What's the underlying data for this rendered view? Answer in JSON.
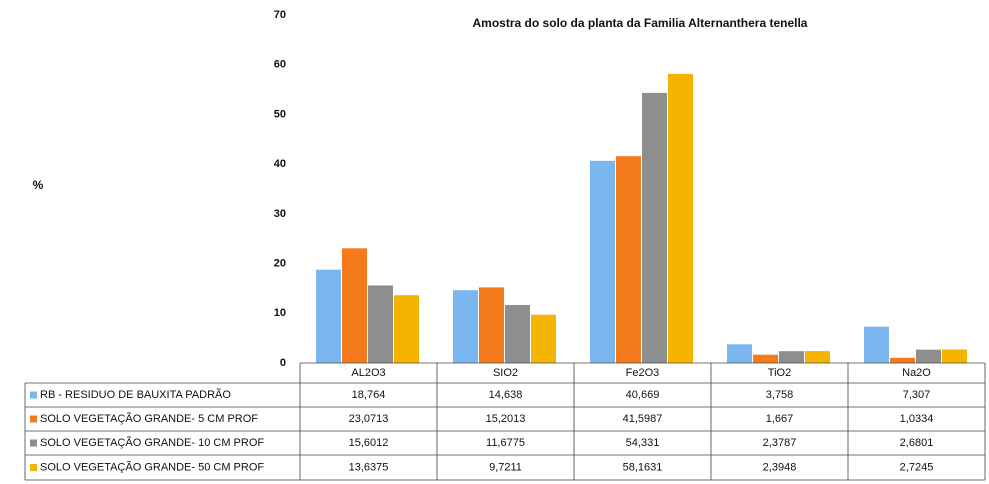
{
  "chart_data": {
    "type": "bar",
    "title": "Amostra do solo da planta da Familia Alternanthera tenella",
    "y_label": "%",
    "categories": [
      "AL2O3",
      "SIO2",
      "Fe2O3",
      "TiO2",
      "Na2O"
    ],
    "ylim": [
      0,
      70
    ],
    "yticks": [
      0,
      10,
      20,
      30,
      40,
      50,
      60,
      70
    ],
    "grid": false,
    "series": [
      {
        "name": "RB - RESIDUO DE BAUXITA PADRÃO",
        "color": "#7ab6f0",
        "values": [
          18.764,
          14.638,
          40.669,
          3.758,
          7.307
        ],
        "value_labels": [
          "18,764",
          "14,638",
          "40,669",
          "3,758",
          "7,307"
        ]
      },
      {
        "name": "SOLO VEGETAÇÃO GRANDE- 5 CM PROF",
        "color": "#f57a1c",
        "values": [
          23.0713,
          15.2013,
          41.5987,
          1.667,
          1.0334
        ],
        "value_labels": [
          "23,0713",
          "15,2013",
          "41,5987",
          "1,667",
          "1,0334"
        ]
      },
      {
        "name": "SOLO VEGETAÇÃO GRANDE- 10 CM PROF",
        "color": "#8e8e8e",
        "values": [
          15.6012,
          11.6775,
          54.331,
          2.3787,
          2.6801
        ],
        "value_labels": [
          "15,6012",
          "11,6775",
          "54,331",
          "2,3787",
          "2,6801"
        ]
      },
      {
        "name": "SOLO VEGETAÇÃO GRANDE- 50 CM PROF",
        "color": "#f5b400",
        "values": [
          13.6375,
          9.7211,
          58.1631,
          2.3948,
          2.7245
        ],
        "value_labels": [
          "13,6375",
          "9,7211",
          "58,1631",
          "2,3948",
          "2,7245"
        ]
      }
    ]
  }
}
